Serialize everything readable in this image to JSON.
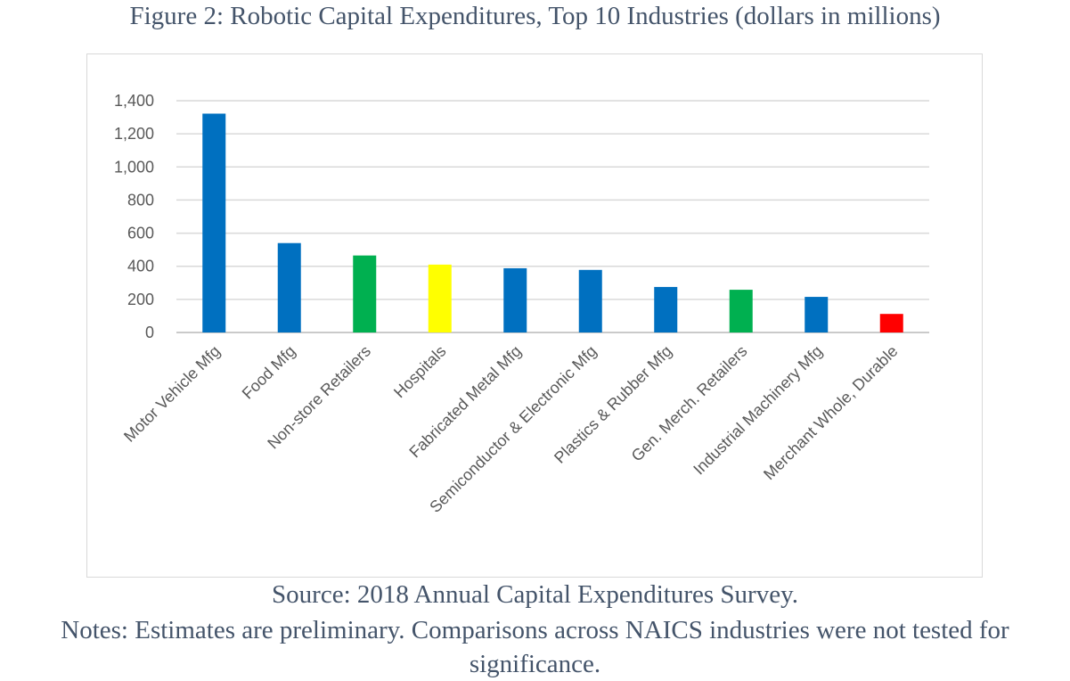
{
  "figure": {
    "title": "Figure 2: Robotic Capital Expenditures, Top 10 Industries (dollars in millions)",
    "source": "Source: 2018 Annual Capital Expenditures Survey.",
    "notes": "Notes: Estimates are preliminary. Comparisons across NAICS industries were not tested for significance."
  },
  "chart_data": {
    "type": "bar",
    "title": "",
    "xlabel": "",
    "ylabel": "",
    "ylim": [
      0,
      1400
    ],
    "yticks": [
      0,
      200,
      400,
      600,
      800,
      1000,
      1200,
      1400
    ],
    "ytick_labels": [
      "0",
      "200",
      "400",
      "600",
      "800",
      "1,000",
      "1,200",
      "1,400"
    ],
    "grid": true,
    "legend": "none",
    "categories": [
      "Motor Vehicle Mfg",
      "Food Mfg",
      "Non-store Retailers",
      "Hospitals",
      "Fabricated Metal Mfg",
      "Semiconductor & Electronic Mfg",
      "Plastics & Rubber Mfg",
      "Gen. Merch. Retailers",
      "Industrial Machinery Mfg",
      "Merchant Whole, Durable"
    ],
    "values": [
      1322,
      540,
      465,
      410,
      388,
      378,
      275,
      258,
      215,
      112
    ],
    "colors": [
      "#0070c0",
      "#0070c0",
      "#00b050",
      "#ffff00",
      "#0070c0",
      "#0070c0",
      "#0070c0",
      "#00b050",
      "#0070c0",
      "#ff0000"
    ]
  }
}
